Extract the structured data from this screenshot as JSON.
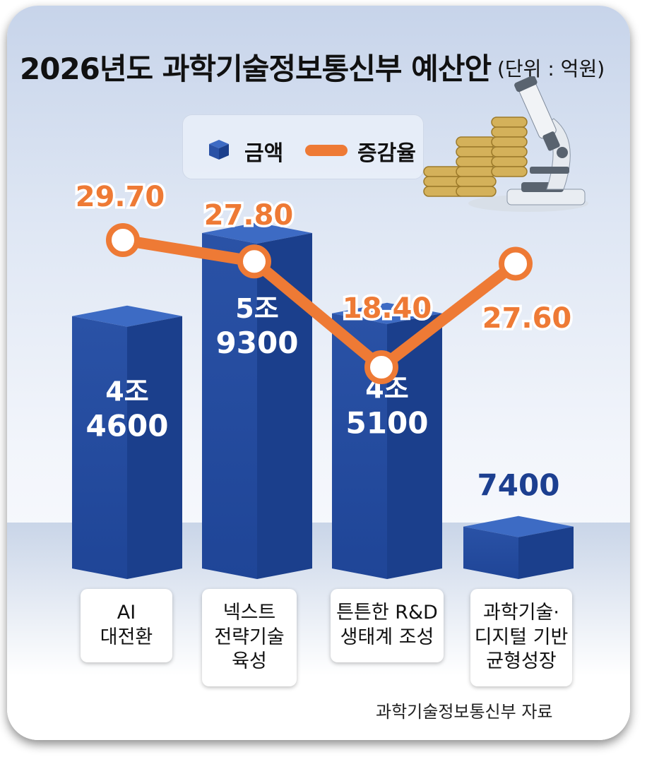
{
  "title": "2026년도 과학기술정보통신부 예산안",
  "unit": "(단위 : 억원)",
  "legend": {
    "bar": "금액",
    "line": "증감율"
  },
  "source": "과학기술정보통신부 자료",
  "colors": {
    "bar": "#2a52a6",
    "bar_top": "#3d6bc4",
    "bar_side": "#1b3f8c",
    "line": "#ee7a35",
    "small_bar_label": "#1c3f90"
  },
  "chart_data": {
    "type": "bar",
    "categories": [
      "AI\n대전환",
      "넥스트\n전략기술\n육성",
      "튼튼한 R&D\n생태계 조성",
      "과학기술·\n디지털 기반\n균형성장"
    ],
    "series": [
      {
        "name": "금액",
        "type": "bar",
        "values": [
          44600,
          59300,
          45100,
          7400
        ],
        "labels": [
          [
            "4조",
            "4600"
          ],
          [
            "5조",
            "9300"
          ],
          [
            "4조",
            "5100"
          ],
          [
            "7400"
          ]
        ]
      },
      {
        "name": "증감율",
        "type": "line",
        "values": [
          29.7,
          27.8,
          18.4,
          27.6
        ],
        "labels": [
          "29.70",
          "27.80",
          "18.40",
          "27.60"
        ]
      }
    ]
  }
}
